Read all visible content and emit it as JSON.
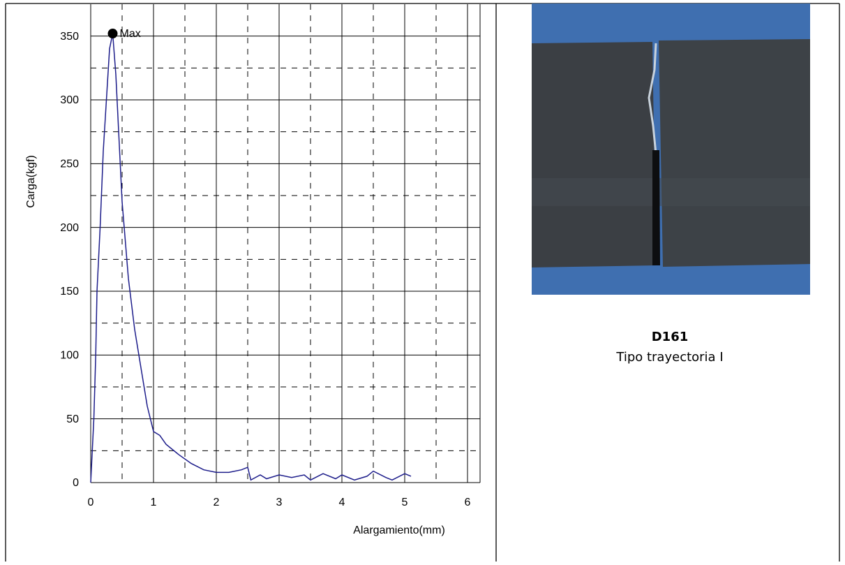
{
  "chart_data": {
    "type": "line",
    "x_label": "Alargamiento(mm)",
    "y_label": "Carga(kgf)",
    "xlim": [
      0,
      6.2
    ],
    "ylim": [
      0,
      375
    ],
    "xticks": [
      0,
      1,
      2,
      3,
      4,
      5,
      6
    ],
    "yticks": [
      0,
      50,
      100,
      150,
      200,
      250,
      300,
      350
    ],
    "minor_xgrid": [
      0.5,
      1.5,
      2.5,
      3.5,
      4.5,
      5.5
    ],
    "minor_ygrid": [
      25,
      75,
      125,
      175,
      225,
      275,
      325
    ],
    "grid": true,
    "series": [
      {
        "color": "#1c1c8a",
        "x": [
          0,
          0.02,
          0.05,
          0.08,
          0.1,
          0.15,
          0.2,
          0.25,
          0.3,
          0.35,
          0.4,
          0.45,
          0.5,
          0.55,
          0.6,
          0.7,
          0.8,
          0.9,
          1.0,
          1.1,
          1.2,
          1.4,
          1.6,
          1.8,
          2.0,
          2.2,
          2.4,
          2.5,
          2.55,
          2.7,
          2.8,
          3.0,
          3.2,
          3.4,
          3.5,
          3.7,
          3.9,
          4.0,
          4.2,
          4.4,
          4.5,
          4.7,
          4.8,
          5.0,
          5.1
        ],
        "values": [
          0,
          20,
          50,
          100,
          150,
          200,
          260,
          300,
          340,
          352,
          320,
          270,
          220,
          190,
          160,
          120,
          90,
          60,
          40,
          37,
          30,
          22,
          15,
          10,
          8,
          8,
          10,
          12,
          2,
          6,
          3,
          6,
          4,
          6,
          2,
          7,
          3,
          6,
          2,
          5,
          9,
          4,
          2,
          7,
          5
        ]
      }
    ],
    "annotations": [
      {
        "text": "Max",
        "x": 0.35,
        "y": 352
      }
    ]
  },
  "caption": {
    "title": "D161",
    "subtitle": "Tipo trayectoria I"
  }
}
